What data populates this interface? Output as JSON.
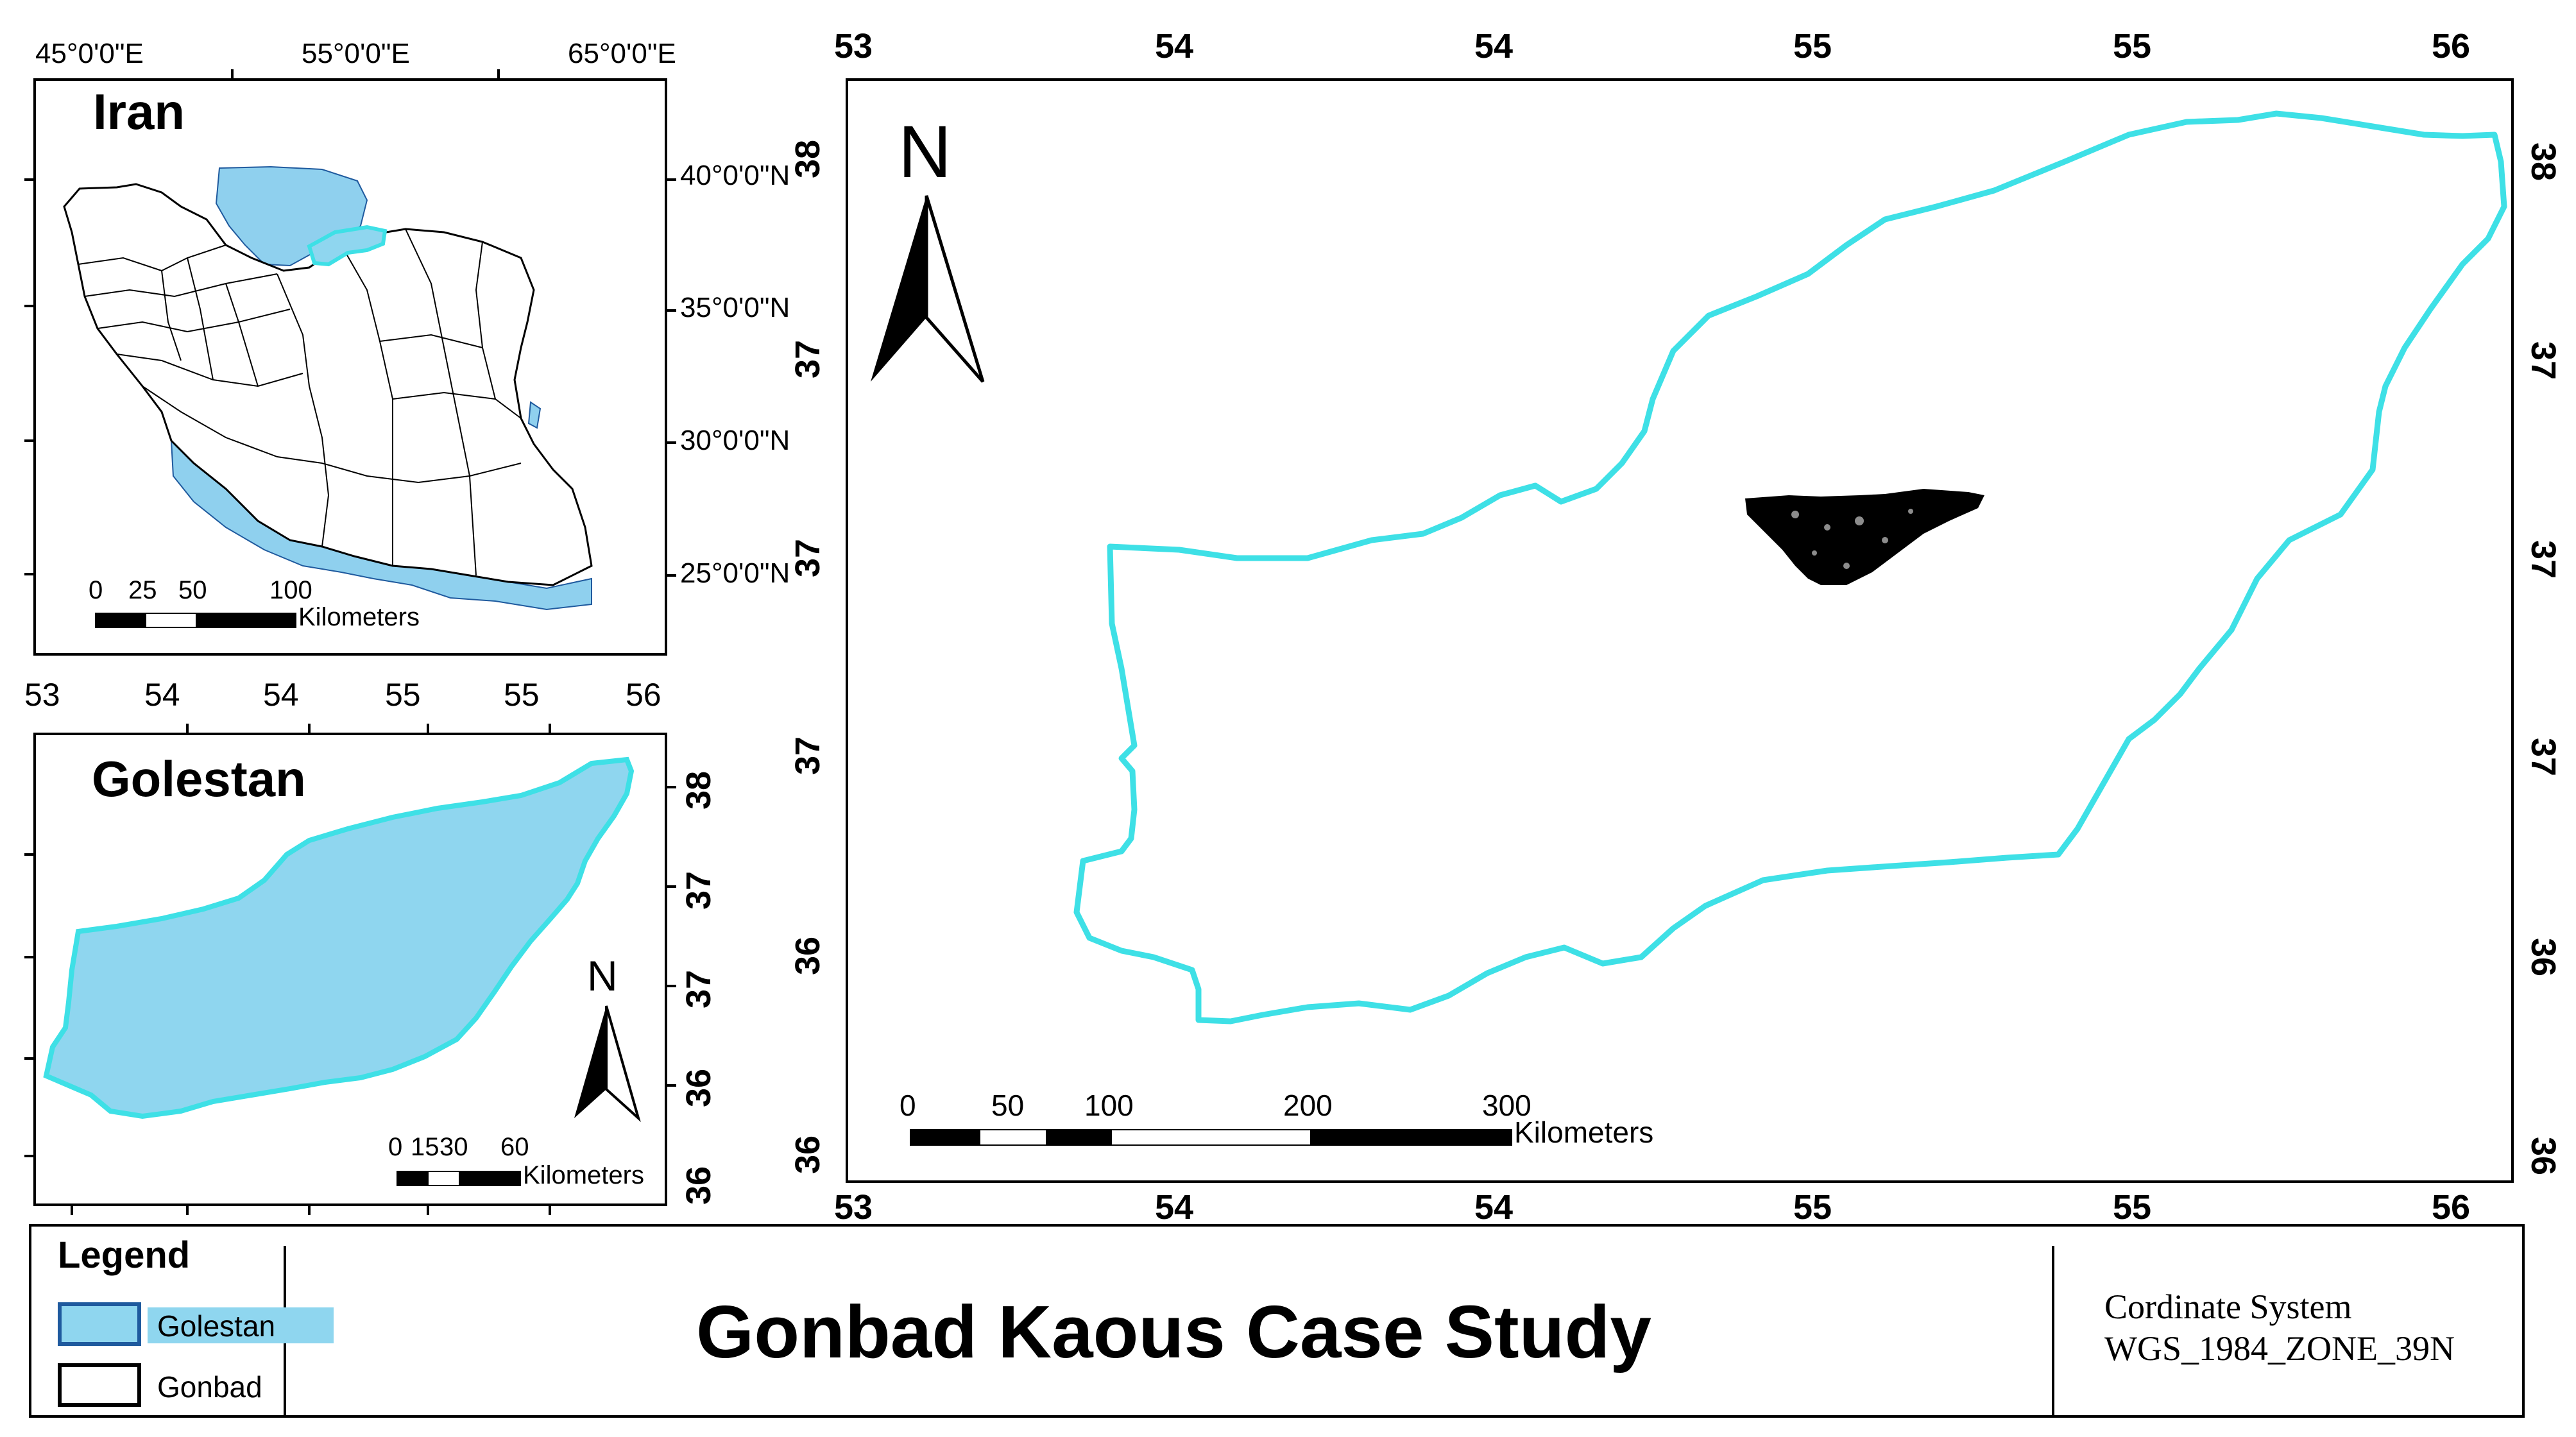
{
  "iran_inset": {
    "title": "Iran",
    "top_labels": [
      "45°0'0\"E",
      "55°0'0\"E",
      "65°0'0\"E"
    ],
    "right_labels": [
      "40°0'0\"N",
      "35°0'0\"N",
      "30°0'0\"N",
      "25°0'0\"N"
    ],
    "scale": {
      "ticks": [
        "0",
        "25",
        "50",
        "100"
      ],
      "unit": "Kilometers"
    }
  },
  "golestan_inset": {
    "title": "Golestan",
    "top_labels": [
      "53",
      "54",
      "54",
      "55",
      "55",
      "56"
    ],
    "right_labels": [
      "38",
      "37",
      "37",
      "36",
      "36"
    ],
    "north_label": "N",
    "scale": {
      "ticks": [
        "0",
        "15",
        "30",
        "60"
      ],
      "unit": "Kilometers"
    }
  },
  "main_map": {
    "north_label": "N",
    "top_labels": [
      "53",
      "54",
      "54",
      "55",
      "55",
      "56"
    ],
    "bottom_labels": [
      "53",
      "54",
      "54",
      "55",
      "55",
      "56"
    ],
    "left_labels": [
      "38",
      "37",
      "37",
      "37",
      "36",
      "36"
    ],
    "right_labels": [
      "38",
      "37",
      "37",
      "37",
      "36",
      "36"
    ],
    "scale": {
      "ticks": [
        "0",
        "50",
        "100",
        "200",
        "300"
      ],
      "unit": "Kilometers"
    }
  },
  "legend": {
    "title": "Legend",
    "items": [
      {
        "label": "Golestan",
        "fill": "#8fd6ef",
        "stroke": "#1f5a9e"
      },
      {
        "label": "Gonbad",
        "fill": "#ffffff",
        "stroke": "#000000"
      }
    ]
  },
  "map_title": "Gonbad Kaous Case Study",
  "coordinate_system": {
    "line1": "Cordinate System",
    "line2": "WGS_1984_ZONE_39N"
  },
  "colors": {
    "boundary": "#3ee0e6",
    "fill": "#8fd6ef",
    "water": "#8fd0ee",
    "frame": "#000000"
  }
}
